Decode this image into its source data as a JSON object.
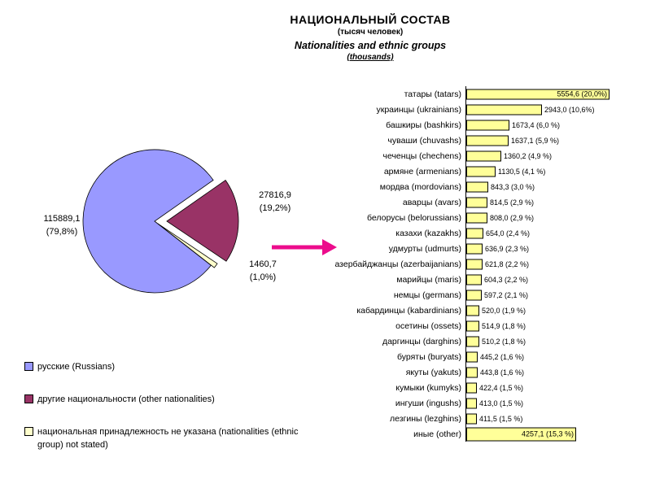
{
  "title": {
    "line1": "НАЦИОНАЛЬНЫЙ СОСТАВ",
    "line2": "(тысяч человек)",
    "line3": "Nationalities and ethnic groups",
    "line4": "(thousands)"
  },
  "decorations": {
    "arrow_color": "#EC0C8C",
    "background_color": "#FFFFFF"
  },
  "chart_data": [
    {
      "type": "pie",
      "units": "thousands of people",
      "slices": [
        {
          "label": "русские (Russians)",
          "value": 115889.1,
          "value_label": "115889,1",
          "pct": "(79,8%)",
          "color": "#9999FF"
        },
        {
          "label": "другие национальности (other nationalities)",
          "value": 27816.9,
          "value_label": "27816,9",
          "pct": "(19,2%)",
          "color": "#993366"
        },
        {
          "label": "национальная принадлежность не указана (nationalities (ethnic group) not stated)",
          "value": 1460.7,
          "value_label": "1460,7",
          "pct": "(1,0%)",
          "color": "#FFFFCC"
        }
      ],
      "legend_position": "bottom-left",
      "exploded_slice": "другие национальности (other nationalities)"
    },
    {
      "type": "bar",
      "orientation": "horizontal",
      "bar_color": "#FFFF99",
      "bar_border_color": "#000000",
      "xlim": [
        0,
        5600
      ],
      "categories": [
        "татары  (tatars)",
        "украинцы  (ukrainians)",
        "башкиры  (bashkirs)",
        "чуваши  (chuvashs)",
        "чеченцы  (chechens)",
        "армяне  (armenians)",
        "мордва  (mordovians)",
        "аварцы  (avars)",
        "белорусы (belorussians)",
        "казахи  (kazakhs)",
        "удмурты  (udmurts)",
        "азербайджанцы  (azerbaijanians)",
        "марийцы  (maris)",
        "немцы  (germans)",
        "кабардинцы (kabardinians)",
        "осетины (ossets)",
        "даргинцы  (darghins)",
        "буряты  (buryats)",
        "якуты  (yakuts)",
        "кумыки  (kumyks)",
        "ингуши  (ingushs)",
        "лезгины  (lezghins)",
        "иные  (other)"
      ],
      "values": [
        5554.6,
        2943.0,
        1673.4,
        1637.1,
        1360.2,
        1130.5,
        843.3,
        814.5,
        808.0,
        654.0,
        636.9,
        621.8,
        604.3,
        597.2,
        520.0,
        514.9,
        510.2,
        445.2,
        443.8,
        422.4,
        413.0,
        411.5,
        4257.1
      ],
      "value_labels": [
        "5554,6 (20,0%)",
        "2943,0 (10,6%)",
        "1673,4 (6,0 %)",
        "1637,1 (5,9 %)",
        "1360,2 (4,9 %)",
        "1130,5 (4,1 %)",
        "843,3 (3,0 %)",
        "814,5 (2,9 %)",
        "808,0 (2,9 %)",
        "654,0 (2,4 %)",
        "636,9 (2,3 %)",
        "621,8 (2,2 %)",
        "604,3 (2,2 %)",
        "597,2 (2,1 %)",
        "520,0 (1,9 %)",
        "514,9 (1,8 %)",
        "510,2 (1,8 %)",
        "445,2 (1,6 %)",
        "443,8 (1,6 %)",
        "422,4 (1,5 %)",
        "413,0 (1,5 %)",
        "411,5 (1,5 %)",
        "4257,1 (15,3 %)"
      ]
    }
  ]
}
